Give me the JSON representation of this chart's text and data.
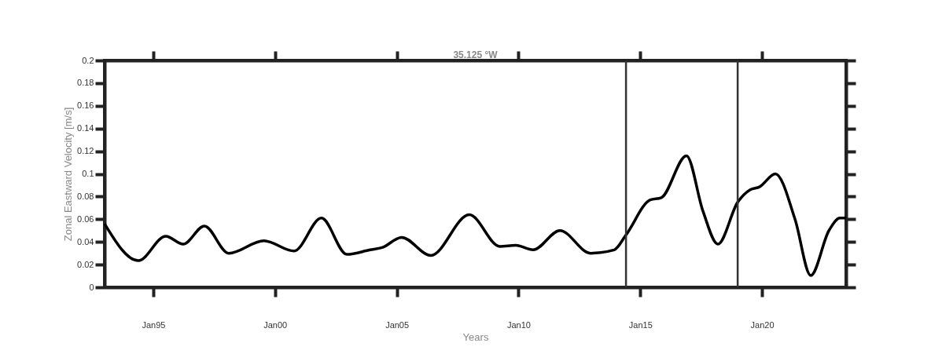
{
  "chart_data": {
    "type": "line",
    "title": "35.125 °W",
    "xlabel": "Years",
    "ylabel": "Zonal Eastward Velocity [m/s]",
    "x": [
      "1993-01-01",
      "1994-05-22",
      "1995-07-08",
      "1996-03-25",
      "1997-02-06",
      "1998-02-06",
      "1999-07-19",
      "2000-10-12",
      "2001-11-28",
      "2002-12-14",
      "2003-11-28",
      "2004-05-26",
      "2005-03-15",
      "2006-05-26",
      "2007-12-24",
      "2009-03-28",
      "2009-11-20",
      "2010-08-08",
      "2011-09-13",
      "2012-12-17",
      "2013-12-05",
      "2014-05-30",
      "2015-05-30",
      "2015-11-13",
      "2016-11-24",
      "2017-07-30",
      "2018-03-10",
      "2019-01-01",
      "2019-07-08",
      "2019-11-24",
      "2020-07-20",
      "2021-05-10",
      "2022-01-01",
      "2022-10-01",
      "2023-03-15",
      "2023-06-15"
    ],
    "series": [
      {
        "color": "#000000",
        "values": [
          0.056,
          0.0235,
          0.045,
          0.038,
          0.054,
          0.03,
          0.041,
          0.032,
          0.061,
          0.029,
          0.033,
          0.035,
          0.044,
          0.028,
          0.064,
          0.036,
          0.037,
          0.033,
          0.05,
          0.03,
          0.033,
          0.046,
          0.077,
          0.079,
          0.116,
          0.067,
          0.038,
          0.075,
          0.086,
          0.0885,
          0.1,
          0.06,
          0.0104,
          0.05,
          0.061,
          0.061
        ]
      }
    ],
    "xlim": [
      "1993-01-01",
      "2023-06-15"
    ],
    "xticks": [
      {
        "value": "1995-01-01",
        "label": "Jan95"
      },
      {
        "value": "2000-01-01",
        "label": "Jan00"
      },
      {
        "value": "2005-01-01",
        "label": "Jan05"
      },
      {
        "value": "2010-01-01",
        "label": "Jan10"
      },
      {
        "value": "2015-01-01",
        "label": "Jan15"
      },
      {
        "value": "2020-01-01",
        "label": "Jan20"
      }
    ],
    "ylim": [
      0,
      0.2
    ],
    "yticks": [
      0,
      0.02,
      0.04,
      0.06,
      0.08,
      0.1,
      0.12,
      0.14,
      0.16,
      0.18,
      0.2
    ],
    "ref_lines": [
      {
        "axis": "x",
        "value": "2014-06-01",
        "color": "#333333"
      },
      {
        "axis": "x",
        "value": "2019-01-01",
        "color": "#333333"
      }
    ],
    "grid": false,
    "marker": "none",
    "line_style": "solid"
  }
}
